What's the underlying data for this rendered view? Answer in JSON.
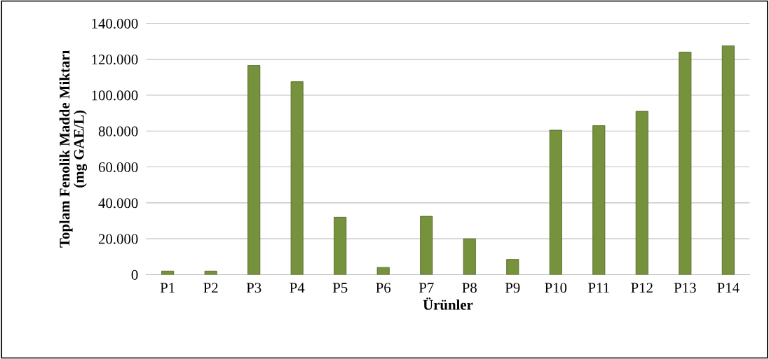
{
  "chart_data": {
    "type": "bar",
    "xlabel": "Ürünler",
    "ylabel": "Toplam Fenolik Madde Miktarı\n(mg GAE/L)",
    "categories": [
      "P1",
      "P2",
      "P3",
      "P4",
      "P5",
      "P6",
      "P7",
      "P8",
      "P9",
      "P10",
      "P11",
      "P12",
      "P13",
      "P14"
    ],
    "values": [
      2000,
      2000,
      116500,
      107500,
      32000,
      4000,
      32500,
      20000,
      8500,
      80500,
      83000,
      91000,
      124000,
      127500
    ],
    "color": "#76923c",
    "ylim": [
      0,
      140000
    ],
    "yticks": [
      0,
      {
        "value": 20000,
        "label": "20.000"
      },
      {
        "value": 40000,
        "label": "40.000"
      },
      {
        "value": 60000,
        "label": "60.000"
      },
      {
        "value": 80000,
        "label": "80.000"
      },
      {
        "value": 100000,
        "label": "100.000"
      },
      {
        "value": 120000,
        "label": "120.000"
      },
      {
        "value": 140000,
        "label": "140.000"
      }
    ],
    "grid": "y"
  }
}
